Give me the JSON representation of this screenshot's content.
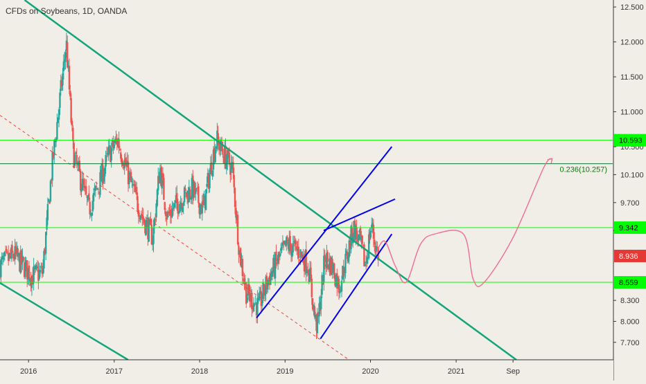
{
  "chart_data": {
    "type": "candlestick",
    "title": "CFDs on Soybeans, 1D, OANDA",
    "y_axis": {
      "range": [
        7.45,
        12.6
      ],
      "ticks": [
        "12.500",
        "12.000",
        "11.500",
        "11.000",
        "10.500",
        "10.100",
        "9.700",
        "9.300",
        "8.300",
        "8.000",
        "7.700"
      ],
      "tick_values": [
        12.5,
        12.0,
        11.5,
        11.0,
        10.5,
        10.1,
        9.7,
        9.3,
        8.3,
        8.0,
        7.7
      ]
    },
    "x_axis": {
      "range": [
        "2015-09-01",
        "2022-11-01"
      ],
      "ticks": [
        "2016",
        "2017",
        "2018",
        "2019",
        "2020",
        "2021",
        "Sep"
      ],
      "tick_dates": [
        "2016-01-01",
        "2017-01-01",
        "2018-01-01",
        "2019-01-01",
        "2020-01-01",
        "2021-01-01",
        "2021-09-01"
      ]
    },
    "grid": false,
    "colors": {
      "up": "#26a69a",
      "down": "#ef5350",
      "green_line": "#00ff00",
      "dark_green_line": "#0b7a35",
      "trend_line": "#13a47a",
      "channel": "#0000ee",
      "projection": "#f06d8f",
      "dashed": "#e8433d"
    },
    "price_path": [
      [
        "2015-09-01",
        8.8
      ],
      [
        "2015-11-01",
        8.95
      ],
      [
        "2016-01-15",
        8.65
      ],
      [
        "2016-03-01",
        8.7
      ],
      [
        "2016-04-10",
        10.2
      ],
      [
        "2016-06-01",
        11.7
      ],
      [
        "2016-06-10",
        12.0
      ],
      [
        "2016-07-10",
        10.4
      ],
      [
        "2016-09-15",
        9.6
      ],
      [
        "2016-11-01",
        10.0
      ],
      [
        "2016-12-10",
        10.4
      ],
      [
        "2017-01-15",
        10.6
      ],
      [
        "2017-03-20",
        9.9
      ],
      [
        "2017-05-01",
        9.5
      ],
      [
        "2017-06-15",
        9.2
      ],
      [
        "2017-07-15",
        10.2
      ],
      [
        "2017-08-15",
        9.5
      ],
      [
        "2017-10-01",
        9.7
      ],
      [
        "2017-12-01",
        9.9
      ],
      [
        "2018-01-15",
        9.6
      ],
      [
        "2018-03-01",
        10.4
      ],
      [
        "2018-03-15",
        10.6
      ],
      [
        "2018-04-20",
        10.35
      ],
      [
        "2018-05-20",
        10.2
      ],
      [
        "2018-06-20",
        9.0
      ],
      [
        "2018-07-20",
        8.4
      ],
      [
        "2018-09-10",
        8.2
      ],
      [
        "2018-10-20",
        8.6
      ],
      [
        "2018-11-20",
        8.8
      ],
      [
        "2019-01-10",
        9.1
      ],
      [
        "2019-03-01",
        9.0
      ],
      [
        "2019-04-10",
        8.8
      ],
      [
        "2019-05-10",
        8.0
      ],
      [
        "2019-05-20",
        7.95
      ],
      [
        "2019-06-20",
        8.9
      ],
      [
        "2019-07-20",
        8.8
      ],
      [
        "2019-08-20",
        8.5
      ],
      [
        "2019-09-20",
        8.9
      ],
      [
        "2019-10-20",
        9.35
      ],
      [
        "2019-11-20",
        9.1
      ],
      [
        "2019-12-10",
        8.8
      ],
      [
        "2020-01-05",
        9.4
      ],
      [
        "2020-01-20",
        9.1
      ],
      [
        "2020-02-05",
        8.94
      ]
    ],
    "horizontal_levels": [
      {
        "value": 10.593,
        "label": "10.593",
        "color": "#00ff00"
      },
      {
        "value": 10.257,
        "label": "",
        "color": "#0b7a35"
      },
      {
        "value": 9.342,
        "label": "9.342",
        "color": "#00ff00"
      },
      {
        "value": 8.559,
        "label": "8.559",
        "color": "#00ff00"
      }
    ],
    "fib_label": "0.236(10.257)",
    "current_price": {
      "value": 8.936,
      "label": "8.936",
      "color": "#e53935"
    },
    "trend_lines": [
      {
        "from": [
          "2015-12-15",
          12.6
        ],
        "to": [
          "2021-09-15",
          7.45
        ],
        "color": "#13a47a"
      },
      {
        "from": [
          "2015-09-01",
          8.55
        ],
        "to": [
          "2017-03-01",
          7.45
        ],
        "color": "#13a47a"
      }
    ],
    "dashed_line": {
      "from": [
        "2015-09-01",
        10.95
      ],
      "to": [
        "2019-10-01",
        7.45
      ]
    },
    "channel_lines": [
      {
        "from": [
          "2018-09-01",
          8.05
        ],
        "to": [
          "2020-04-01",
          10.5
        ]
      },
      {
        "from": [
          "2019-06-01",
          7.75
        ],
        "to": [
          "2020-04-01",
          9.25
        ]
      },
      {
        "from": [
          "2019-06-15",
          9.3
        ],
        "to": [
          "2020-04-15",
          9.75
        ]
      }
    ],
    "projection_path": [
      [
        "2020-01-20",
        8.95
      ],
      [
        "2020-03-01",
        9.15
      ],
      [
        "2020-04-15",
        8.8
      ],
      [
        "2020-06-01",
        8.56
      ],
      [
        "2020-08-01",
        9.1
      ],
      [
        "2020-10-01",
        9.25
      ],
      [
        "2021-02-01",
        9.25
      ],
      [
        "2021-03-15",
        8.6
      ],
      [
        "2021-05-01",
        8.56
      ],
      [
        "2021-09-01",
        9.2
      ],
      [
        "2022-01-10",
        10.2
      ],
      [
        "2022-02-15",
        10.33
      ]
    ]
  }
}
